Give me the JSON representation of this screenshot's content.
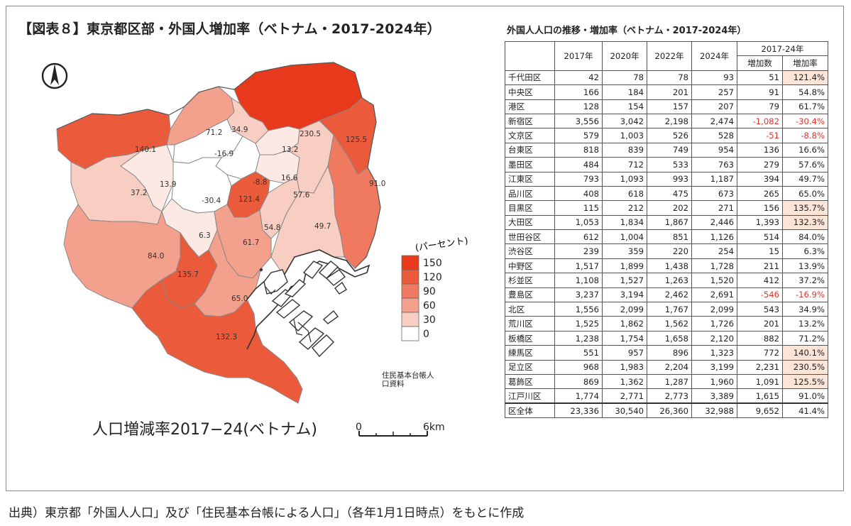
{
  "title": "【図表８】東京都区部・外国人増加率（ベトナム・2017-2024年）",
  "table_title": "外国人人口の推移・増加率（ベトナム・2017-2024年）",
  "source": "出典）東京都「外国人人口」及び「住民基本台帳による人口」（各年1月1日時点）をもとに作成",
  "map": {
    "caption": "人口増減率2017−24(ベトナム)",
    "legend_title": "(パーセント)",
    "legend_levels": [
      "150",
      "120",
      "90",
      "60",
      "30",
      "0"
    ],
    "legend_colors": [
      "#e8391d",
      "#ec5a3c",
      "#ef7a60",
      "#f3a08c",
      "#f8cdc2",
      "#ffffff"
    ],
    "data_source_note_line1": "住民基本台帳人",
    "data_source_note_line2": "口資料",
    "scale_start": "0",
    "scale_end": "6km",
    "north_icon": "north-arrow-icon"
  },
  "table": {
    "headers": {
      "y2017": "2017年",
      "y2020": "2020年",
      "y2022": "2022年",
      "y2024": "2024年",
      "period": "2017-24年",
      "increase": "増加数",
      "rate": "増加率"
    }
  },
  "chart_data": {
    "type": "table",
    "title": "外国人人口の推移・増加率（ベトナム・2017-2024年）",
    "columns": [
      "2017年",
      "2020年",
      "2022年",
      "2024年",
      "増加数",
      "増加率"
    ],
    "rows": [
      {
        "ward": "千代田区",
        "values": [
          "42",
          "78",
          "78",
          "93",
          "51",
          "121.4%"
        ],
        "rate": 121.4
      },
      {
        "ward": "中央区",
        "values": [
          "166",
          "184",
          "201",
          "257",
          "91",
          "54.8%"
        ],
        "rate": 54.8
      },
      {
        "ward": "港区",
        "values": [
          "128",
          "154",
          "157",
          "207",
          "79",
          "61.7%"
        ],
        "rate": 61.7
      },
      {
        "ward": "新宿区",
        "values": [
          "3,556",
          "3,042",
          "2,198",
          "2,474",
          "-1,082",
          "-30.4%"
        ],
        "rate": -30.4
      },
      {
        "ward": "文京区",
        "values": [
          "579",
          "1,003",
          "526",
          "528",
          "-51",
          "-8.8%"
        ],
        "rate": -8.8
      },
      {
        "ward": "台東区",
        "values": [
          "818",
          "839",
          "749",
          "954",
          "136",
          "16.6%"
        ],
        "rate": 16.6
      },
      {
        "ward": "墨田区",
        "values": [
          "484",
          "712",
          "533",
          "763",
          "279",
          "57.6%"
        ],
        "rate": 57.6
      },
      {
        "ward": "江東区",
        "values": [
          "793",
          "1,093",
          "993",
          "1,187",
          "394",
          "49.7%"
        ],
        "rate": 49.7
      },
      {
        "ward": "品川区",
        "values": [
          "408",
          "618",
          "475",
          "673",
          "265",
          "65.0%"
        ],
        "rate": 65.0
      },
      {
        "ward": "目黒区",
        "values": [
          "115",
          "212",
          "202",
          "271",
          "156",
          "135.7%"
        ],
        "rate": 135.7
      },
      {
        "ward": "大田区",
        "values": [
          "1,053",
          "1,834",
          "1,867",
          "2,446",
          "1,393",
          "132.3%"
        ],
        "rate": 132.3
      },
      {
        "ward": "世田谷区",
        "values": [
          "612",
          "1,004",
          "851",
          "1,126",
          "514",
          "84.0%"
        ],
        "rate": 84.0
      },
      {
        "ward": "渋谷区",
        "values": [
          "239",
          "359",
          "220",
          "254",
          "15",
          "6.3%"
        ],
        "rate": 6.3
      },
      {
        "ward": "中野区",
        "values": [
          "1,517",
          "1,899",
          "1,438",
          "1,728",
          "211",
          "13.9%"
        ],
        "rate": 13.9
      },
      {
        "ward": "杉並区",
        "values": [
          "1,108",
          "1,527",
          "1,263",
          "1,520",
          "412",
          "37.2%"
        ],
        "rate": 37.2
      },
      {
        "ward": "豊島区",
        "values": [
          "3,237",
          "3,194",
          "2,462",
          "2,691",
          "-546",
          "-16.9%"
        ],
        "rate": -16.9
      },
      {
        "ward": "北区",
        "values": [
          "1,556",
          "2,099",
          "1,767",
          "2,099",
          "543",
          "34.9%"
        ],
        "rate": 34.9
      },
      {
        "ward": "荒川区",
        "values": [
          "1,525",
          "1,862",
          "1,562",
          "1,726",
          "201",
          "13.2%"
        ],
        "rate": 13.2
      },
      {
        "ward": "板橋区",
        "values": [
          "1,238",
          "1,754",
          "1,658",
          "2,120",
          "882",
          "71.2%"
        ],
        "rate": 71.2
      },
      {
        "ward": "練馬区",
        "values": [
          "551",
          "957",
          "896",
          "1,323",
          "772",
          "140.1%"
        ],
        "rate": 140.1
      },
      {
        "ward": "足立区",
        "values": [
          "968",
          "1,983",
          "2,204",
          "3,199",
          "2,231",
          "230.5%"
        ],
        "rate": 230.5
      },
      {
        "ward": "葛飾区",
        "values": [
          "869",
          "1,362",
          "1,287",
          "1,960",
          "1,091",
          "125.5%"
        ],
        "rate": 125.5
      },
      {
        "ward": "江戸川区",
        "values": [
          "1,774",
          "2,771",
          "2,773",
          "3,389",
          "1,615",
          "91.0%"
        ],
        "rate": 91.0
      }
    ],
    "total": {
      "ward": "区全体",
      "values": [
        "23,336",
        "30,540",
        "26,360",
        "32,988",
        "9,652",
        "41.4%"
      ],
      "rate": 41.4
    },
    "map_labels": [
      {
        "ward": "千代田区",
        "label": "121.4"
      },
      {
        "ward": "中央区",
        "label": "54.8"
      },
      {
        "ward": "港区",
        "label": "61.7"
      },
      {
        "ward": "新宿区",
        "label": "-30.4"
      },
      {
        "ward": "文京区",
        "label": "-8.8"
      },
      {
        "ward": "台東区",
        "label": "16.6"
      },
      {
        "ward": "墨田区",
        "label": "57.6"
      },
      {
        "ward": "江東区",
        "label": "49.7"
      },
      {
        "ward": "品川区",
        "label": "65.0"
      },
      {
        "ward": "目黒区",
        "label": "135.7"
      },
      {
        "ward": "大田区",
        "label": "132.3"
      },
      {
        "ward": "世田谷区",
        "label": "84.0"
      },
      {
        "ward": "渋谷区",
        "label": "6.3"
      },
      {
        "ward": "中野区",
        "label": "13.9"
      },
      {
        "ward": "杉並区",
        "label": "37.2"
      },
      {
        "ward": "豊島区",
        "label": "-16.9"
      },
      {
        "ward": "北区",
        "label": "34.9"
      },
      {
        "ward": "荒川区",
        "label": "13.2"
      },
      {
        "ward": "板橋区",
        "label": "71.2"
      },
      {
        "ward": "練馬区",
        "label": "140.1"
      },
      {
        "ward": "足立区",
        "label": "230.5"
      },
      {
        "ward": "葛飾区",
        "label": "125.5"
      },
      {
        "ward": "江戸川区",
        "label": "91.0"
      }
    ]
  }
}
